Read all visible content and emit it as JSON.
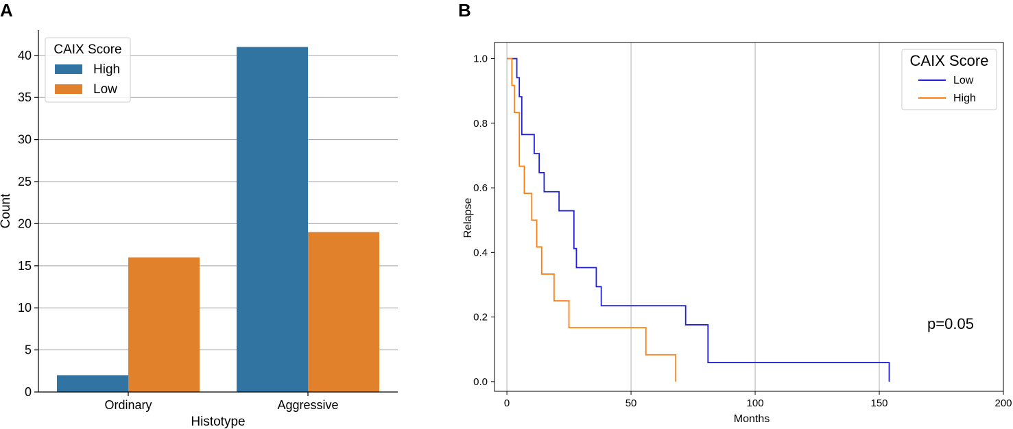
{
  "chart_data": [
    {
      "panel": "A",
      "type": "bar",
      "title": "",
      "xlabel": "Histotype",
      "ylabel": "Count",
      "categories": [
        "Ordinary",
        "Aggressive"
      ],
      "ylim": [
        0,
        43
      ],
      "yticks": [
        0,
        5,
        10,
        15,
        20,
        25,
        30,
        35,
        40
      ],
      "grid": "horizontal",
      "legend": {
        "title": "CAIX Score",
        "placement": "top-left"
      },
      "series": [
        {
          "name": "High",
          "color": "#3274a1",
          "values": [
            2,
            41
          ]
        },
        {
          "name": "Low",
          "color": "#e1812c",
          "values": [
            16,
            19
          ]
        }
      ]
    },
    {
      "panel": "B",
      "type": "line",
      "title": "",
      "xlabel": "Months",
      "ylabel": "Relapse",
      "xlim": [
        -5,
        200
      ],
      "ylim": [
        -0.03,
        1.05
      ],
      "xticks": [
        0,
        50,
        100,
        150,
        200
      ],
      "yticks": [
        "0.0",
        "0.2",
        "0.4",
        "0.6",
        "0.8",
        "1.0"
      ],
      "grid": "vertical",
      "legend": {
        "title": "CAIX Score",
        "placement": "top-right"
      },
      "annotation": "p=0.05",
      "series": [
        {
          "name": "Low",
          "color": "#1f1fdc",
          "step": true,
          "x": [
            0,
            4,
            5,
            6,
            7,
            11,
            13,
            15,
            21,
            27,
            28,
            36,
            38,
            72,
            81,
            154
          ],
          "y": [
            1.0,
            0.941,
            0.882,
            0.765,
            0.765,
            0.706,
            0.647,
            0.588,
            0.529,
            0.412,
            0.353,
            0.294,
            0.235,
            0.176,
            0.059,
            0.0
          ]
        },
        {
          "name": "High",
          "color": "#ff7f0e",
          "step": true,
          "x": [
            0,
            2,
            3,
            5,
            7,
            10,
            11,
            12,
            14,
            19,
            25,
            56,
            68
          ],
          "y": [
            1.0,
            0.917,
            0.833,
            0.667,
            0.583,
            0.5,
            0.5,
            0.417,
            0.333,
            0.25,
            0.167,
            0.083,
            0.0
          ]
        }
      ]
    }
  ]
}
